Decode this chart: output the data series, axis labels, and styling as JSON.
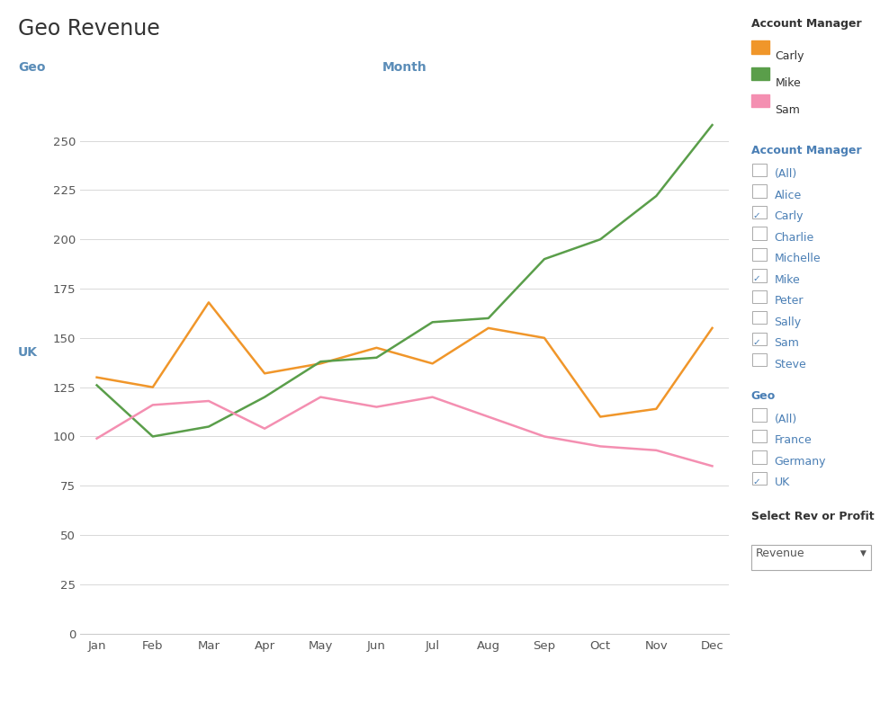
{
  "title": "Geo Revenue",
  "x_label": "Month",
  "y_label_top": "Geo",
  "y_label_mid": "UK",
  "months": [
    "Jan",
    "Feb",
    "Mar",
    "Apr",
    "May",
    "Jun",
    "Jul",
    "Aug",
    "Sep",
    "Oct",
    "Nov",
    "Dec"
  ],
  "carly": [
    130,
    125,
    168,
    132,
    137,
    145,
    137,
    155,
    150,
    110,
    114,
    155
  ],
  "mike": [
    126,
    100,
    105,
    120,
    138,
    140,
    158,
    160,
    190,
    200,
    222,
    258
  ],
  "sam": [
    99,
    116,
    118,
    104,
    120,
    115,
    120,
    110,
    100,
    95,
    93,
    85
  ],
  "carly_color": "#f0962a",
  "mike_color": "#5a9e4a",
  "sam_color": "#f48fb1",
  "title_color": "#333333",
  "axis_label_color": "#5b8db8",
  "tick_color": "#555555",
  "bg_color": "#ffffff",
  "plot_bg_color": "#ffffff",
  "grid_color": "#d8d8d8",
  "ylim": [
    0,
    275
  ],
  "yticks": [
    0,
    25,
    50,
    75,
    100,
    125,
    150,
    175,
    200,
    225,
    250
  ],
  "sidebar_account_manager_title": "Account Manager",
  "sidebar_account_manager_items": [
    "(All)",
    "Alice",
    "Carly",
    "Charlie",
    "Michelle",
    "Mike",
    "Peter",
    "Sally",
    "Sam",
    "Steve"
  ],
  "sidebar_checked_am": [
    "Carly",
    "Mike",
    "Sam"
  ],
  "sidebar_geo_title": "Geo",
  "sidebar_geo_items": [
    "(All)",
    "France",
    "Germany",
    "UK"
  ],
  "sidebar_checked_geo": [
    "UK"
  ],
  "sidebar_dropdown_label": "Select Rev or Profit",
  "sidebar_dropdown_value": "Revenue",
  "legend_items": [
    {
      "name": "Carly",
      "color": "#f0962a"
    },
    {
      "name": "Mike",
      "color": "#5a9e4a"
    },
    {
      "name": "Sam",
      "color": "#f48fb1"
    }
  ]
}
